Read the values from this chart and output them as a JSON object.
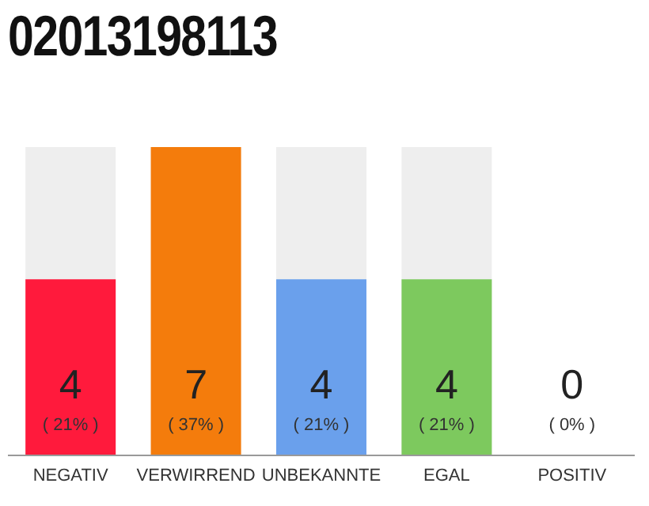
{
  "chart_data": {
    "type": "bar",
    "title": "02013198113",
    "categories": [
      "NEGATIV",
      "VERWIRREND",
      "UNBEKANNTE",
      "EGAL",
      "POSITIV"
    ],
    "values": [
      4,
      7,
      4,
      4,
      0
    ],
    "colors": [
      "#ff1a3c",
      "#f47c0c",
      "#6aa0ec",
      "#7dc95e",
      "#9e9e9e"
    ],
    "data_labels": true,
    "annotations": [
      "( 21% )",
      "( 37% )",
      "( 21% )",
      "( 21% )",
      "( 0% )"
    ]
  }
}
